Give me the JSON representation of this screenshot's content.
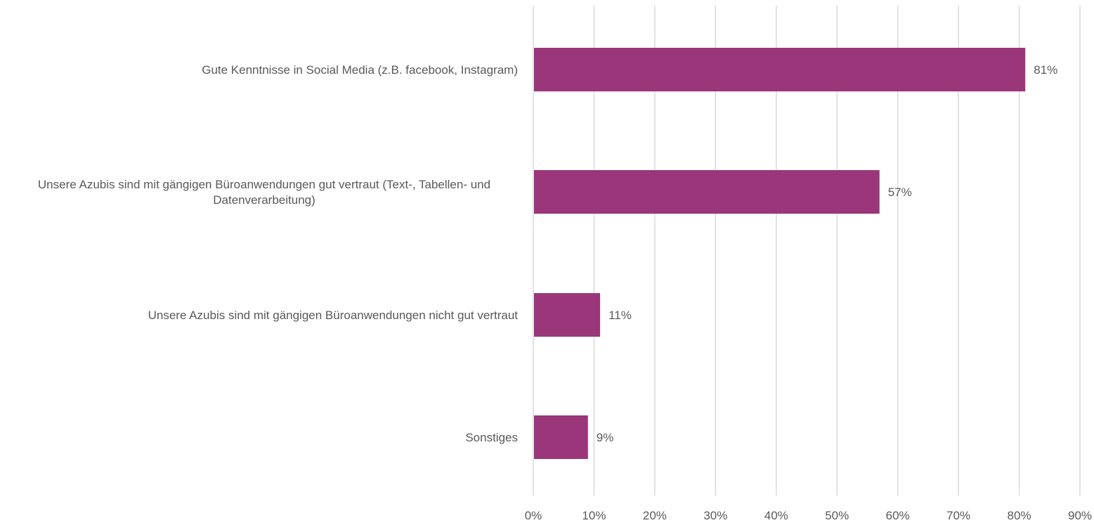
{
  "chart_data": {
    "type": "bar",
    "orientation": "horizontal",
    "categories": [
      [
        "Gute Kenntnisse in Social Media (z.B. facebook, Instagram)"
      ],
      [
        "Unsere Azubis sind mit gängigen Büroanwendungen gut vertraut (Text-, Tabellen- und",
        "Datenverarbeitung)"
      ],
      [
        "Unsere Azubis sind mit gängigen Büroanwendungen nicht gut vertraut"
      ],
      [
        "Sonstiges"
      ]
    ],
    "values": [
      81,
      57,
      11,
      9
    ],
    "data_labels": [
      "81%",
      "57%",
      "11%",
      "9%"
    ],
    "xlim": [
      0,
      90
    ],
    "xticks": [
      0,
      10,
      20,
      30,
      40,
      50,
      60,
      70,
      80,
      90
    ],
    "xtick_labels": [
      "0%",
      "10%",
      "20%",
      "30%",
      "40%",
      "50%",
      "60%",
      "70%",
      "80%",
      "90%"
    ],
    "grid": "vertical",
    "legend": "none",
    "bar_color": "#9b367a",
    "gridline_color": "#d9d9d9",
    "text_color": "#595959"
  }
}
